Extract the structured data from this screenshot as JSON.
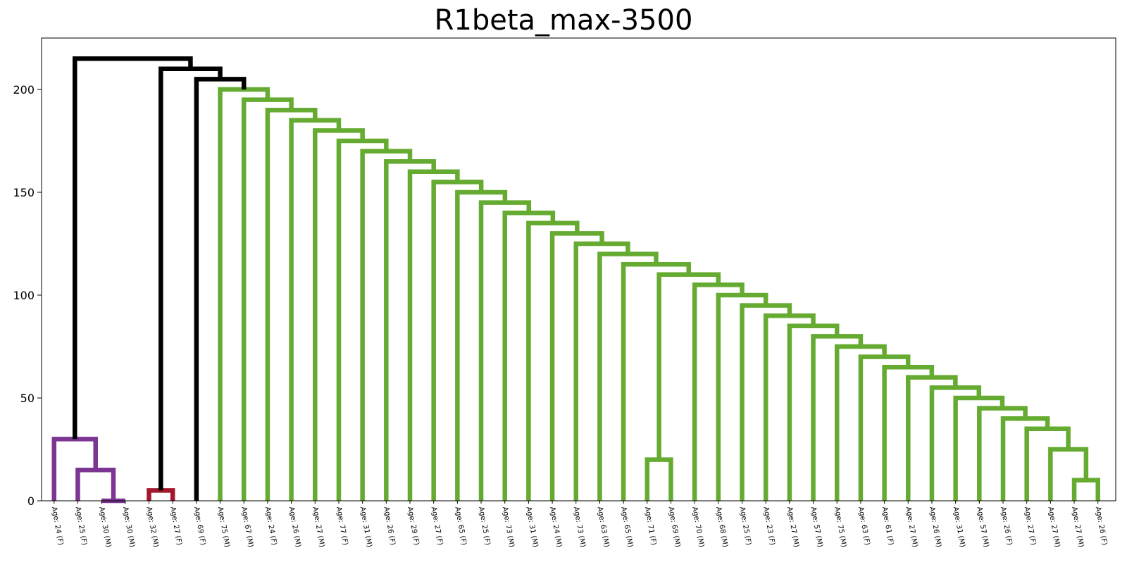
{
  "chart_data": {
    "type": "dendrogram",
    "title": "R1beta_max-3500",
    "xlabel": "",
    "ylabel": "",
    "ylim": [
      0,
      225
    ],
    "y_ticks": [
      0,
      50,
      100,
      150,
      200
    ],
    "grid": false,
    "colors": {
      "purple_cluster": "#7d3592",
      "red_cluster": "#a3182d",
      "green_cluster": "#66ab31",
      "above_threshold": "#000000"
    },
    "leaves": [
      "Age: 24 (F)",
      "Age: 25 (F)",
      "Age: 30 (M)",
      "Age: 30 (M)",
      "Age: 32 (M)",
      "Age: 27 (F)",
      "Age: 69 (F)",
      "Age: 75 (M)",
      "Age: 67 (M)",
      "Age: 24 (F)",
      "Age: 26 (M)",
      "Age: 27 (M)",
      "Age: 77 (F)",
      "Age: 31 (M)",
      "Age: 26 (F)",
      "Age: 29 (F)",
      "Age: 27 (F)",
      "Age: 65 (F)",
      "Age: 25 (F)",
      "Age: 73 (M)",
      "Age: 31 (M)",
      "Age: 24 (M)",
      "Age: 73 (M)",
      "Age: 63 (M)",
      "Age: 65 (M)",
      "Age: 71 (F)",
      "Age: 69 (M)",
      "Age: 70 (M)",
      "Age: 68 (M)",
      "Age: 25 (F)",
      "Age: 23 (F)",
      "Age: 27 (M)",
      "Age: 57 (M)",
      "Age: 75 (M)",
      "Age: 63 (F)",
      "Age: 61 (F)",
      "Age: 27 (M)",
      "Age: 26 (M)",
      "Age: 31 (M)",
      "Age: 57 (M)",
      "Age: 26 (F)",
      "Age: 27 (F)",
      "Age: 27 (M)",
      "Age: 27 (M)",
      "Age: 26 (F)"
    ],
    "merges": [
      {
        "left": "L2",
        "right": "L3",
        "height": 0,
        "color": "purple_cluster"
      },
      {
        "left": "L1",
        "right": "M0",
        "height": 15,
        "color": "purple_cluster"
      },
      {
        "left": "L0",
        "right": "M1",
        "height": 30,
        "color": "purple_cluster"
      },
      {
        "left": "L4",
        "right": "L5",
        "height": 5,
        "color": "red_cluster"
      },
      {
        "left": "L25",
        "right": "L26",
        "height": 20,
        "color": "green_cluster"
      },
      {
        "left": "L43",
        "right": "L44",
        "height": 10,
        "color": "green_cluster"
      },
      {
        "left": "L42",
        "right": "M5",
        "height": 25,
        "color": "green_cluster"
      },
      {
        "left": "L41",
        "right": "M6",
        "height": 35,
        "color": "green_cluster"
      },
      {
        "left": "L40",
        "right": "M7",
        "height": 40,
        "color": "green_cluster"
      },
      {
        "left": "L39",
        "right": "M8",
        "height": 45,
        "color": "green_cluster"
      },
      {
        "left": "L38",
        "right": "M9",
        "height": 50,
        "color": "green_cluster"
      },
      {
        "left": "L37",
        "right": "M10",
        "height": 55,
        "color": "green_cluster"
      },
      {
        "left": "L36",
        "right": "M11",
        "height": 60,
        "color": "green_cluster"
      },
      {
        "left": "L35",
        "right": "M12",
        "height": 65,
        "color": "green_cluster"
      },
      {
        "left": "L34",
        "right": "M13",
        "height": 70,
        "color": "green_cluster"
      },
      {
        "left": "L33",
        "right": "M14",
        "height": 75,
        "color": "green_cluster"
      },
      {
        "left": "L32",
        "right": "M15",
        "height": 80,
        "color": "green_cluster"
      },
      {
        "left": "L31",
        "right": "M16",
        "height": 85,
        "color": "green_cluster"
      },
      {
        "left": "L30",
        "right": "M17",
        "height": 90,
        "color": "green_cluster"
      },
      {
        "left": "L29",
        "right": "M18",
        "height": 95,
        "color": "green_cluster"
      },
      {
        "left": "L28",
        "right": "M19",
        "height": 100,
        "color": "green_cluster"
      },
      {
        "left": "L27",
        "right": "M20",
        "height": 105,
        "color": "green_cluster"
      },
      {
        "left": "M4",
        "right": "M21",
        "height": 110,
        "color": "green_cluster"
      },
      {
        "left": "L24",
        "right": "M22",
        "height": 115,
        "color": "green_cluster"
      },
      {
        "left": "L23",
        "right": "M23",
        "height": 120,
        "color": "green_cluster"
      },
      {
        "left": "L22",
        "right": "M24",
        "height": 125,
        "color": "green_cluster"
      },
      {
        "left": "L21",
        "right": "M25",
        "height": 130,
        "color": "green_cluster"
      },
      {
        "left": "L20",
        "right": "M26",
        "height": 135,
        "color": "green_cluster"
      },
      {
        "left": "L19",
        "right": "M27",
        "height": 140,
        "color": "green_cluster"
      },
      {
        "left": "L18",
        "right": "M28",
        "height": 145,
        "color": "green_cluster"
      },
      {
        "left": "L17",
        "right": "M29",
        "height": 150,
        "color": "green_cluster"
      },
      {
        "left": "L16",
        "right": "M30",
        "height": 155,
        "color": "green_cluster"
      },
      {
        "left": "L15",
        "right": "M31",
        "height": 160,
        "color": "green_cluster"
      },
      {
        "left": "L14",
        "right": "M32",
        "height": 165,
        "color": "green_cluster"
      },
      {
        "left": "L13",
        "right": "M33",
        "height": 170,
        "color": "green_cluster"
      },
      {
        "left": "L12",
        "right": "M34",
        "height": 175,
        "color": "green_cluster"
      },
      {
        "left": "L11",
        "right": "M35",
        "height": 180,
        "color": "green_cluster"
      },
      {
        "left": "L10",
        "right": "M36",
        "height": 185,
        "color": "green_cluster"
      },
      {
        "left": "L9",
        "right": "M37",
        "height": 190,
        "color": "green_cluster"
      },
      {
        "left": "L8",
        "right": "M38",
        "height": 195,
        "color": "green_cluster"
      },
      {
        "left": "L7",
        "right": "M39",
        "height": 200,
        "color": "green_cluster"
      },
      {
        "left": "L6",
        "right": "M40",
        "height": 205,
        "color": "above_threshold"
      },
      {
        "left": "M3",
        "right": "M41",
        "height": 210,
        "color": "above_threshold"
      },
      {
        "left": "M2",
        "right": "M42",
        "height": 215,
        "color": "above_threshold"
      }
    ]
  }
}
